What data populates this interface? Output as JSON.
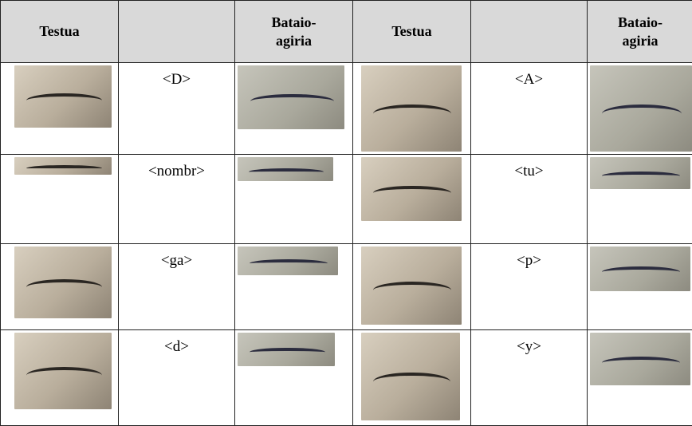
{
  "header": [
    "Testua",
    "Bataio-agiria",
    "Testua",
    "Bataio-agiria"
  ],
  "rows": [
    [
      "<D>",
      "<A>"
    ],
    [
      "<nombr>",
      "<tu>"
    ],
    [
      "<ga>",
      "<p>"
    ],
    [
      "<d>",
      "<y>"
    ]
  ]
}
